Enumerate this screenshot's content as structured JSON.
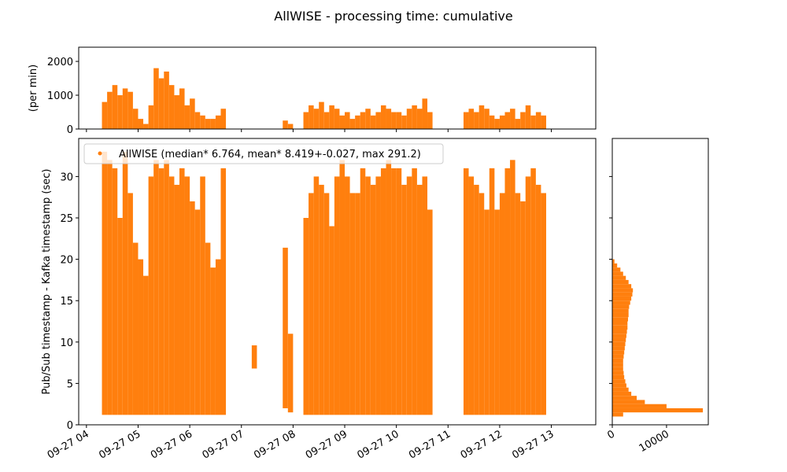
{
  "chart_data": [
    {
      "type": "histogram",
      "title": "AllWISE - processing time: cumulative",
      "ylabel": "(per min)",
      "color": "#ff7f0e",
      "bins": [
        4.3,
        4.4,
        4.5,
        4.6,
        4.7,
        4.8,
        4.9,
        5.0,
        5.1,
        5.2,
        5.3,
        5.4,
        5.5,
        5.6,
        5.7,
        5.8,
        5.9,
        6.0,
        6.1,
        6.2,
        6.3,
        6.4,
        6.5,
        6.6,
        6.7,
        6.8,
        6.9,
        7.0,
        7.1,
        7.2,
        7.3,
        7.4,
        7.5,
        7.6,
        7.7,
        7.8,
        7.9,
        8.0,
        8.1,
        8.2,
        8.3,
        8.4,
        8.5,
        8.6,
        8.7,
        8.8,
        8.9,
        9.0,
        9.1,
        9.2,
        9.3,
        9.4,
        9.5,
        9.6,
        9.7,
        9.8,
        9.9,
        10.0,
        10.1,
        10.2,
        10.3,
        10.4,
        10.5,
        10.6,
        10.7,
        10.8,
        10.9,
        11.0,
        11.1,
        11.2,
        11.3,
        11.4,
        11.5,
        11.6,
        11.7,
        11.8,
        11.9,
        12.0,
        12.1,
        12.2,
        12.3,
        12.4,
        12.5,
        12.6,
        12.7,
        12.8,
        12.9
      ],
      "values": [
        800,
        1100,
        1300,
        1000,
        1200,
        1100,
        600,
        300,
        150,
        700,
        1800,
        1500,
        1700,
        1300,
        1000,
        1200,
        700,
        900,
        500,
        400,
        300,
        300,
        400,
        600,
        0,
        0,
        0,
        0,
        0,
        0,
        0,
        0,
        0,
        0,
        0,
        250,
        150,
        0,
        0,
        500,
        700,
        600,
        800,
        500,
        700,
        600,
        400,
        500,
        300,
        400,
        500,
        600,
        400,
        500,
        700,
        600,
        500,
        500,
        400,
        600,
        700,
        600,
        900,
        500,
        0,
        0,
        0,
        0,
        0,
        0,
        500,
        600,
        500,
        700,
        600,
        400,
        300,
        400,
        500,
        600,
        300,
        500,
        700,
        400,
        500,
        400
      ],
      "ylim": [
        0,
        2420
      ],
      "yticks": [
        0,
        1000,
        2000
      ]
    },
    {
      "type": "range",
      "ylabel": "Pub/Sub timestamp - Kafka timestamp (sec)",
      "legend": "upper left",
      "series": [
        {
          "name": "AllWISE (median* 6.764, mean* 8.419+-0.027, max 291.2)",
          "color": "#ff7f0e",
          "bins": [
            4.3,
            4.4,
            4.5,
            4.6,
            4.7,
            4.8,
            4.9,
            5.0,
            5.1,
            5.2,
            5.3,
            5.4,
            5.5,
            5.6,
            5.7,
            5.8,
            5.9,
            6.0,
            6.1,
            6.2,
            6.3,
            6.4,
            6.5,
            6.6,
            6.7,
            6.8,
            6.9,
            7.0,
            7.1,
            7.2,
            7.3,
            7.4,
            7.5,
            7.6,
            7.7,
            7.8,
            7.9,
            8.0,
            8.1,
            8.2,
            8.3,
            8.4,
            8.5,
            8.6,
            8.7,
            8.8,
            8.9,
            9.0,
            9.1,
            9.2,
            9.3,
            9.4,
            9.5,
            9.6,
            9.7,
            9.8,
            9.9,
            10.0,
            10.1,
            10.2,
            10.3,
            10.4,
            10.5,
            10.6,
            10.7,
            10.8,
            10.9,
            11.0,
            11.1,
            11.2,
            11.3,
            11.4,
            11.5,
            11.6,
            11.7,
            11.8,
            11.9,
            12.0,
            12.1,
            12.2,
            12.3,
            12.4,
            12.5,
            12.6,
            12.7,
            12.8,
            12.9
          ],
          "low": [
            1.2,
            1.2,
            1.2,
            1.2,
            1.2,
            1.2,
            1.2,
            1.2,
            1.2,
            1.2,
            1.2,
            1.2,
            1.2,
            1.2,
            1.2,
            1.2,
            1.2,
            1.2,
            1.2,
            1.2,
            1.2,
            1.2,
            1.2,
            1.2,
            null,
            null,
            null,
            null,
            null,
            6.8,
            null,
            null,
            null,
            null,
            null,
            2,
            1.5,
            null,
            null,
            1.2,
            1.2,
            1.2,
            1.2,
            1.2,
            1.2,
            1.2,
            1.2,
            1.2,
            1.2,
            1.2,
            1.2,
            1.2,
            1.2,
            1.2,
            1.2,
            1.2,
            1.2,
            1.2,
            1.2,
            1.2,
            1.2,
            1.2,
            1.2,
            1.2,
            null,
            null,
            null,
            null,
            null,
            null,
            1.2,
            1.2,
            1.2,
            1.2,
            1.2,
            1.2,
            1.2,
            1.2,
            1.2,
            1.2,
            1.2,
            1.2,
            1.2,
            1.2,
            1.2,
            1.2
          ],
          "high": [
            33,
            32,
            31,
            25,
            33,
            28,
            22,
            20,
            18,
            30,
            32,
            31,
            32,
            30,
            29,
            31,
            30,
            27,
            26,
            30,
            22,
            19,
            20,
            31,
            null,
            null,
            null,
            null,
            null,
            9.6,
            null,
            null,
            null,
            null,
            null,
            21.4,
            11,
            null,
            null,
            25,
            28,
            30,
            29,
            28,
            24,
            30,
            32,
            30,
            28,
            28,
            31,
            30,
            29,
            30,
            31,
            32,
            31,
            31,
            29,
            30,
            31,
            29,
            30,
            26,
            null,
            null,
            null,
            null,
            null,
            null,
            31,
            30,
            29,
            28,
            26,
            31,
            26,
            28,
            31,
            32,
            28,
            27,
            30,
            31,
            29,
            28
          ]
        }
      ],
      "xlim": [
        3.85,
        13.86
      ],
      "xticks": [
        {
          "value": 4,
          "label": "09-27 04"
        },
        {
          "value": 5,
          "label": "09-27 05"
        },
        {
          "value": 6,
          "label": "09-27 06"
        },
        {
          "value": 7,
          "label": "09-27 07"
        },
        {
          "value": 8,
          "label": "09-27 08"
        },
        {
          "value": 9,
          "label": "09-27 09"
        },
        {
          "value": 10,
          "label": "09-27 10"
        },
        {
          "value": 11,
          "label": "09-27 11"
        },
        {
          "value": 12,
          "label": "09-27 12"
        },
        {
          "value": 13,
          "label": "09-27 13"
        }
      ],
      "ylim": [
        0,
        34.6
      ],
      "yticks": [
        0,
        5,
        10,
        15,
        20,
        25,
        30
      ]
    },
    {
      "type": "histogram",
      "orientation": "horizontal",
      "color": "#ff7f0e",
      "bins": [
        1.0,
        1.5,
        2.0,
        2.5,
        3.0,
        3.5,
        4.0,
        4.5,
        5.0,
        5.5,
        6.0,
        6.5,
        7.0,
        7.5,
        8.0,
        8.5,
        9.0,
        9.5,
        10.0,
        10.5,
        11.0,
        11.5,
        12.0,
        12.5,
        13.0,
        13.5,
        14.0,
        14.5,
        15.0,
        15.5,
        16.0,
        16.5,
        17.0,
        17.5,
        18.0,
        18.5,
        19.0,
        19.5,
        20.0
      ],
      "values": [
        2000,
        16700,
        10000,
        6000,
        4500,
        3500,
        3000,
        2600,
        2400,
        2200,
        2100,
        2000,
        2000,
        2000,
        2100,
        2200,
        2300,
        2400,
        2500,
        2600,
        2700,
        2800,
        2800,
        2900,
        3000,
        3000,
        3100,
        3300,
        3500,
        3700,
        3800,
        3500,
        3000,
        2500,
        2000,
        1500,
        900,
        400
      ],
      "xlim": [
        0,
        17700
      ],
      "xticks": [
        0,
        10000
      ]
    }
  ]
}
